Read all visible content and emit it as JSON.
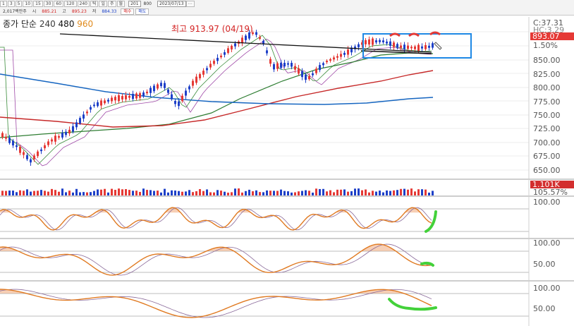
{
  "toolbar": {
    "period_buttons": [
      "1",
      "3",
      "5",
      "10",
      "15",
      "30",
      "60",
      "120",
      "240",
      "틱",
      "일",
      "주",
      "월"
    ],
    "count_input": "201",
    "count_total": "800",
    "date_input": "2023/07/13",
    "extra_button": "⋯",
    "info_volume": "2,017백만주",
    "info_open_label": "시",
    "info_open": "885.21",
    "info_high_label": "고",
    "info_high": "895.23",
    "info_low_label": "저",
    "info_low": "884.33",
    "tag_buy": "매수",
    "tag_sell": "매도"
  },
  "legend": {
    "prefix": "종가 단순",
    "ma1": "240",
    "ma2": "480",
    "ma3": "960"
  },
  "annotation": {
    "high_text": "최고 913.97 (04/19)"
  },
  "price_axis": {
    "top_labels": [
      "C:37.31",
      "HC:3.29"
    ],
    "current_price": "893.07",
    "change_pct": "1.50%",
    "ticks": [
      "850.00",
      "825.00",
      "800.00",
      "775.00",
      "750.00",
      "725.00",
      "700.00",
      "675.00",
      "650.00"
    ]
  },
  "volume_axis": {
    "current_volume": "1.101K",
    "pct": "105.57%"
  },
  "indicator_axes": {
    "panel1": [
      "100.00"
    ],
    "panel2": [
      "100.00",
      "50.00"
    ],
    "panel3": [
      "100.00",
      "50.00"
    ]
  },
  "colors": {
    "up_candle": "#e53935",
    "down_candle": "#1e40c8",
    "ma_fast": "#2e7d32",
    "ma_mid": "#c62828",
    "ma_slow": "#1565c0",
    "trend_line": "#111111",
    "highlight_box": "#1e88e5",
    "annotation_green": "#43d13a",
    "annotation_red": "#e53935",
    "osc_main": "#e07a22",
    "osc_fill": "#f0a878"
  }
}
